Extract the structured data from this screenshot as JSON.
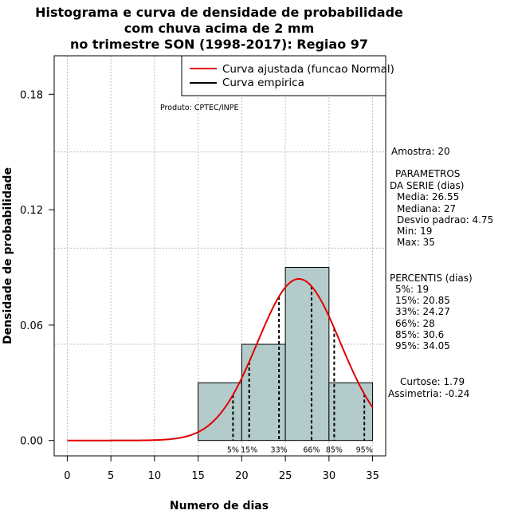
{
  "chart_data": {
    "type": "bar",
    "title_lines": [
      "Histograma e curva de densidade de probabilidade",
      "com chuva acima de 2 mm",
      "no trimestre SON (1998-2017): Regiao 97"
    ],
    "xlabel": "Numero de dias",
    "ylabel": "Densidade de probabilidade",
    "xlim": [
      -1.5,
      36.5
    ],
    "ylim": [
      -0.008,
      0.2
    ],
    "xticks": [
      0,
      5,
      10,
      15,
      20,
      25,
      30,
      35
    ],
    "xtick_labels": [
      "0",
      "5",
      "10",
      "15",
      "20",
      "25",
      "30",
      "35"
    ],
    "yticks": [
      0.0,
      0.06,
      0.12,
      0.18
    ],
    "ytick_labels": [
      "0.00",
      "0.06",
      "0.12",
      "0.18"
    ],
    "grid_x": [
      0,
      5,
      10,
      15,
      20,
      25,
      30,
      35
    ],
    "grid_y": [
      0.05,
      0.1,
      0.15
    ],
    "bins": [
      {
        "from": 15,
        "to": 20,
        "density": 0.03
      },
      {
        "from": 20,
        "to": 25,
        "density": 0.05
      },
      {
        "from": 25,
        "to": 30,
        "density": 0.09
      },
      {
        "from": 30,
        "to": 35,
        "density": 0.03
      }
    ],
    "fitted_curve": {
      "name": "Curva ajustada (funcao Normal)",
      "distribution": "normal",
      "mean": 26.55,
      "sd": 4.75,
      "x_range": [
        0,
        35
      ],
      "color": "#e00000"
    },
    "empirical_curve": {
      "name": "Curva empirica",
      "color": "#000000"
    },
    "percentile_lines": [
      {
        "label": "5%",
        "x": 19
      },
      {
        "label": "15%",
        "x": 20.85
      },
      {
        "label": "33%",
        "x": 24.27
      },
      {
        "label": "66%",
        "x": 28
      },
      {
        "label": "85%",
        "x": 30.6
      },
      {
        "label": "95%",
        "x": 34.05
      }
    ],
    "legend_position": "top-right",
    "annotation": "Produto: CPTEC/INPE",
    "bar_color": "#b4cbcb"
  },
  "stats_panel": {
    "amostra": "Amostra: 20",
    "params_title_1": "PARAMETROS",
    "params_title_2": "DA SERIE (dias)",
    "media": "Media: 26.55",
    "mediana": "Mediana: 27",
    "desvio": "Desvio padrao: 4.75",
    "min": "Min: 19",
    "max": "Max: 35",
    "perc_title": "PERCENTIS (dias)",
    "p5": "5%: 19",
    "p15": "15%: 20.85",
    "p33": "33%: 24.27",
    "p66": "66%: 28",
    "p85": "85%: 30.6",
    "p95": "95%: 34.05",
    "curtose": "Curtose: 1.79",
    "assimetria": "Assimetria: -0.24"
  }
}
